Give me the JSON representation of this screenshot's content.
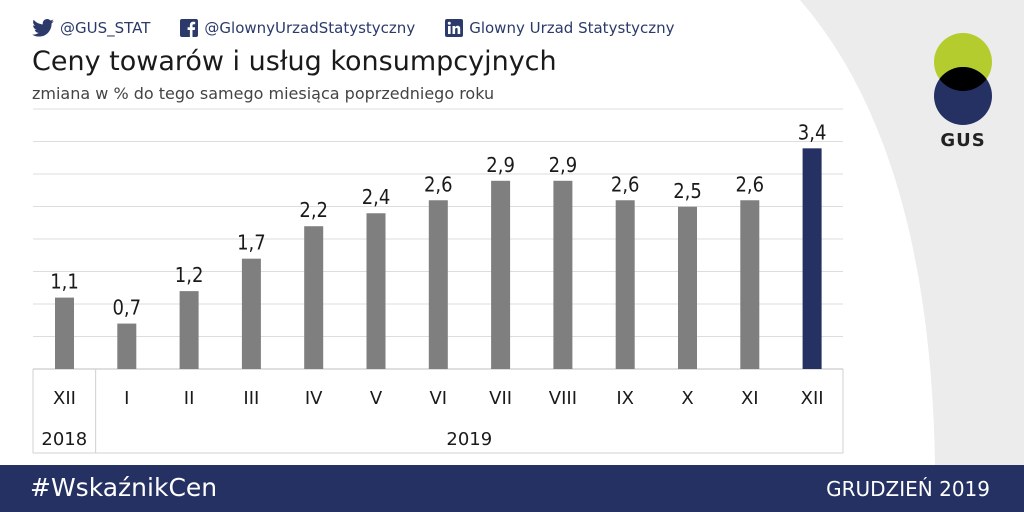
{
  "social": {
    "twitter": "@GUS_STAT",
    "facebook": "@GlownyUrzadStatystyczny",
    "linkedin": "Glowny Urzad Statystyczny"
  },
  "logo": {
    "text": "GUS",
    "colors": {
      "green": "#b5cc2e",
      "navy": "#243162",
      "overlap": "#000000"
    }
  },
  "chart_data": {
    "type": "bar",
    "title": "Ceny towarów i usług konsumpcyjnych",
    "subtitle": "zmiana w % do tego samego miesiąca poprzedniego roku",
    "categories": [
      "XII",
      "I",
      "II",
      "III",
      "IV",
      "V",
      "VI",
      "VII",
      "VIII",
      "IX",
      "X",
      "XI",
      "XII"
    ],
    "values": [
      1.1,
      0.7,
      1.2,
      1.7,
      2.2,
      2.4,
      2.6,
      2.9,
      2.9,
      2.6,
      2.5,
      2.6,
      3.4
    ],
    "data_labels": [
      "1,1",
      "0,7",
      "1,2",
      "1,7",
      "2,2",
      "2,4",
      "2,6",
      "2,9",
      "2,9",
      "2,6",
      "2,5",
      "2,6",
      "3,4"
    ],
    "year_groups": [
      {
        "label": "2018",
        "from": 0,
        "to": 0
      },
      {
        "label": "2019",
        "from": 1,
        "to": 12
      }
    ],
    "ylim": [
      0,
      4
    ],
    "grid": true,
    "colors": {
      "default": "#7f7f7f",
      "highlight": "#243162"
    },
    "highlight_index": 12
  },
  "footer": {
    "hashtag": "#WskaźnikCen",
    "date": "GRUDZIEŃ 2019"
  }
}
